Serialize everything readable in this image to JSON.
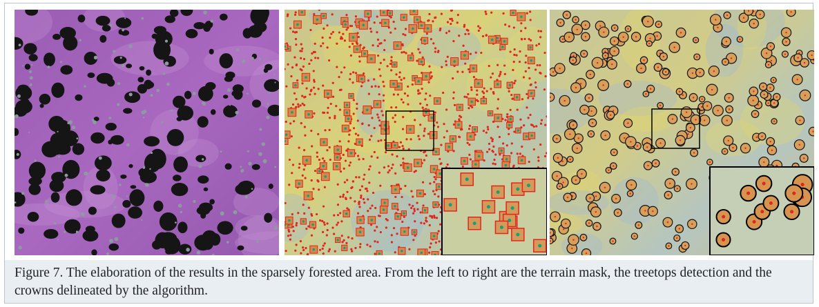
{
  "figure": {
    "caption": "Figure 7. The elaboration of the results in the sparsely forested area. From the left to right are the terrain mask, the treetops detection and the crowns delineated by the algorithm."
  }
}
